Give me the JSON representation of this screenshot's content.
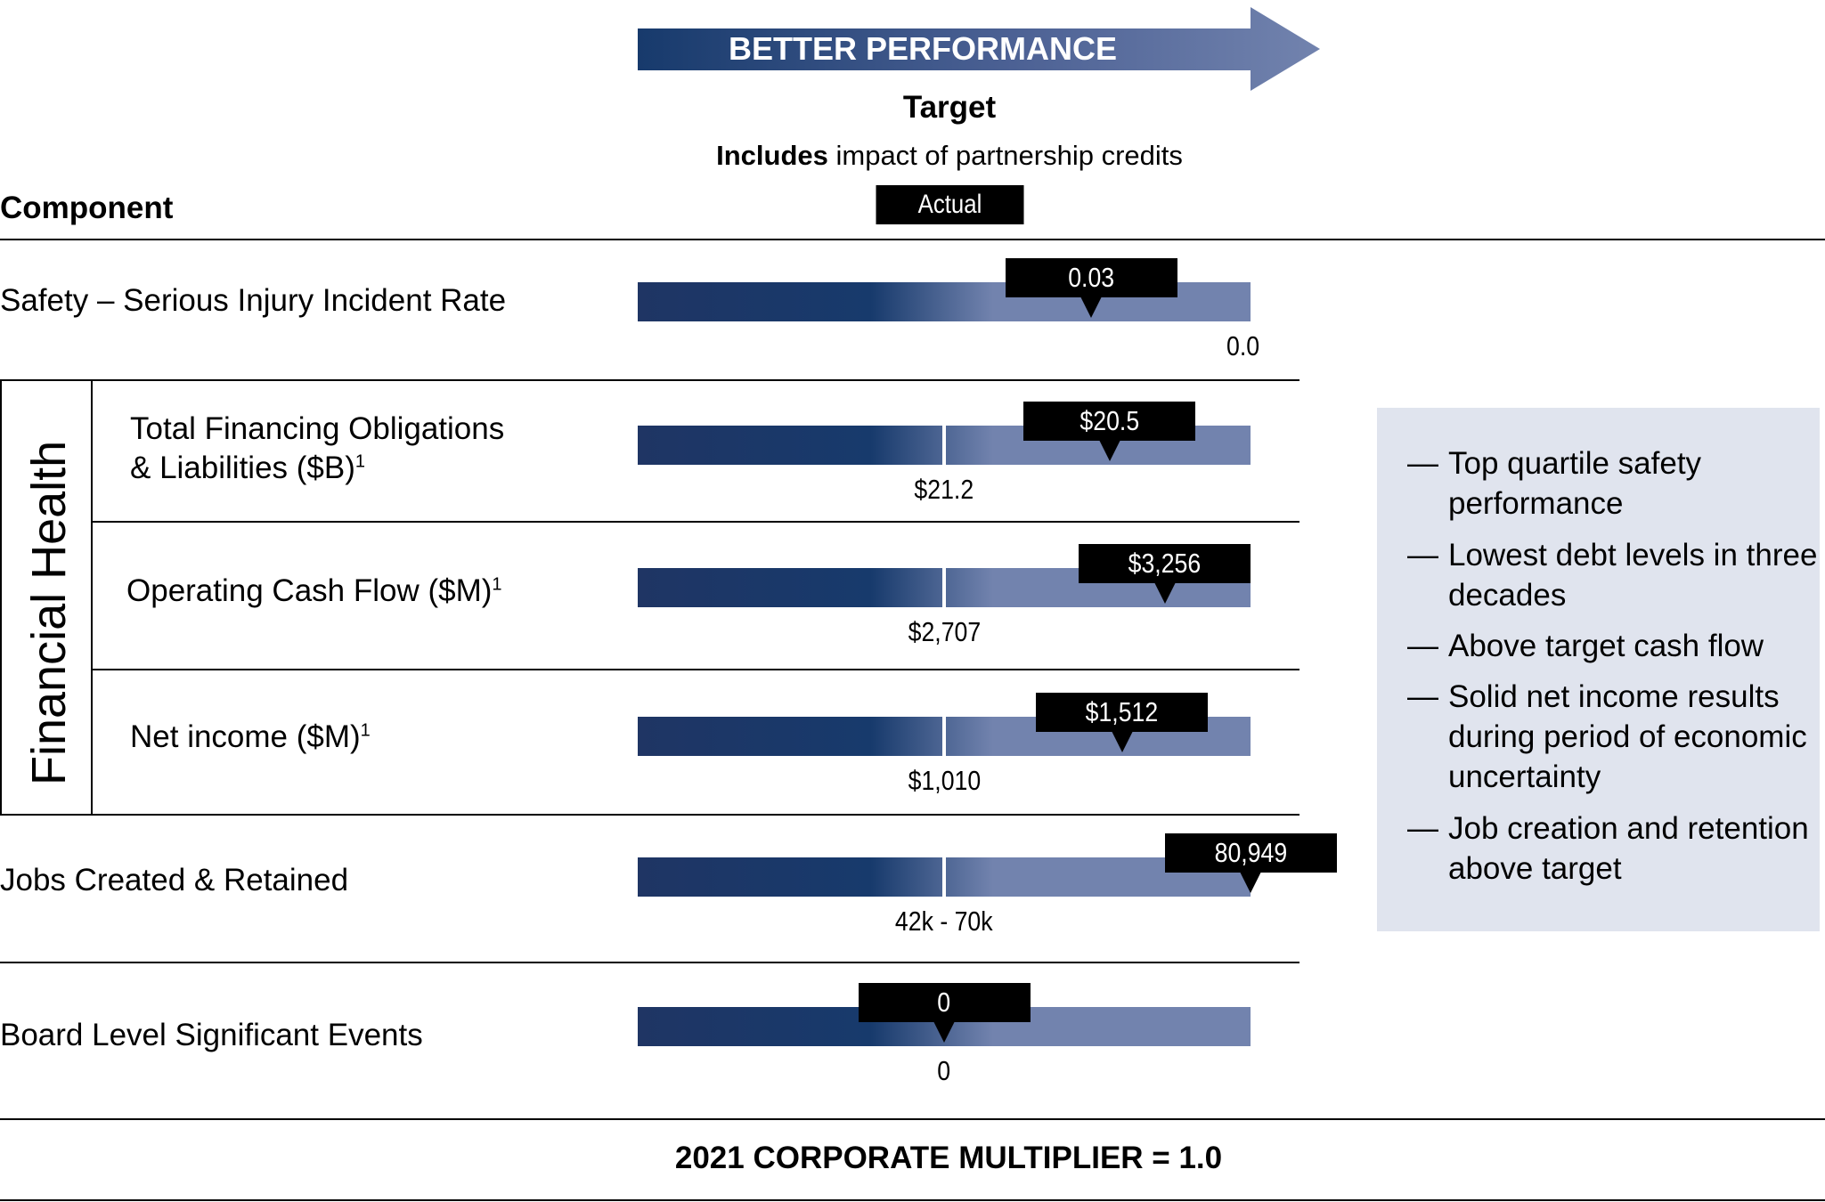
{
  "header": {
    "arrow_label": "BETTER PERFORMANCE",
    "target_title": "Target",
    "target_sub_bold": "Includes",
    "target_sub_rest": " impact of partnership credits",
    "actual_key": "Actual",
    "component_head": "Component"
  },
  "colors": {
    "bar_dark": "#1f3564",
    "bar_light": "#7283ae",
    "arrow_dark": "#173a6c",
    "panel_bg": "#e0e4ee"
  },
  "group_label": "Financial Health",
  "side_panel": {
    "items": [
      "Top quartile safety performance",
      "Lowest debt levels in three decades",
      "Above target cash flow",
      "Solid net income results during period of economic uncertainty",
      "Job creation and retention above target"
    ],
    "dash": "—"
  },
  "footer": {
    "multiplier": "2021 CORPORATE MULTIPLIER = 1.0"
  },
  "chart_data": {
    "type": "bar",
    "categories": [
      "Safety – Serious Injury Incident Rate",
      "Total Financing Obligations & Liabilities ($B)",
      "Operating Cash Flow ($M)",
      "Net income ($M)",
      "Jobs Created & Retained",
      "Board Level Significant Events"
    ],
    "rows": [
      {
        "label": "Safety – Serious Injury Incident Rate",
        "line2": "",
        "footnote": "",
        "target": "0.0",
        "actual": "0.03",
        "target_position": 1.0,
        "actual_position": 0.74,
        "has_target_tick": false
      },
      {
        "label": "Total Financing Obligations",
        "line2": "& Liabilities ($B)",
        "footnote": "1",
        "target": "$21.2",
        "actual": "$20.5",
        "target_position": 0.5,
        "actual_position": 0.77,
        "has_target_tick": true
      },
      {
        "label": "Operating Cash Flow ($M)",
        "line2": "",
        "footnote": "1",
        "target": "$2,707",
        "actual": "$3,256",
        "target_position": 0.5,
        "actual_position": 0.86,
        "has_target_tick": true
      },
      {
        "label": "Net income ($M)",
        "line2": "",
        "footnote": "1",
        "target": "$1,010",
        "actual": "$1,512",
        "target_position": 0.5,
        "actual_position": 0.79,
        "has_target_tick": true
      },
      {
        "label": "Jobs Created & Retained",
        "line2": "",
        "footnote": "",
        "target": "42k - 70k",
        "actual": "80,949",
        "target_position": 0.5,
        "actual_position": 1.0,
        "has_target_tick": true
      },
      {
        "label": "Board Level Significant Events",
        "line2": "",
        "footnote": "",
        "target": "0",
        "actual": "0",
        "target_position": 0.5,
        "actual_position": 0.5,
        "has_target_tick": false
      }
    ],
    "title": "",
    "xlabel": "",
    "ylabel": "",
    "direction": "left-to-right = better performance"
  }
}
